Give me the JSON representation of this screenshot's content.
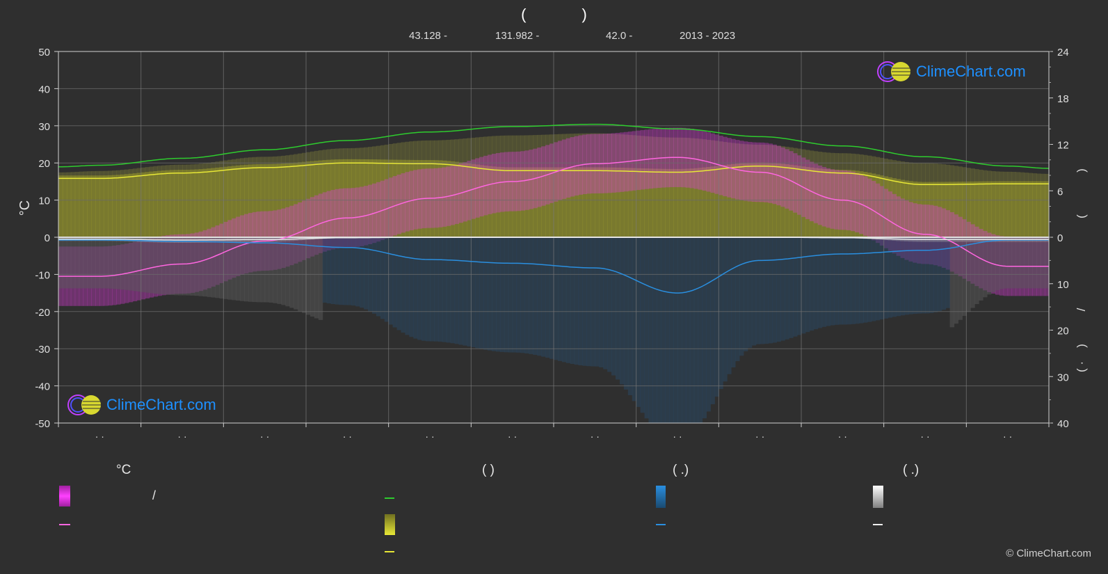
{
  "header": {
    "title_left": "(",
    "title_right": ")",
    "lat": "43.128 -",
    "lon": "131.982 -",
    "elev": "42.0 -",
    "years": "2013 - 2023"
  },
  "logo": {
    "text": "ClimeChart.com"
  },
  "copyright": "© ClimeChart.com",
  "legend": {
    "col1_head": "°C",
    "col1_slash": "/",
    "col2_head": "(          )",
    "col3_head": "(   .)",
    "col4_head": "(   .)"
  },
  "colors": {
    "background": "#2f2f2f",
    "daylight": "#2ecc2e",
    "sunshine": "#e8e836",
    "temperature": "#ff66e0",
    "temp_band": "#e13ce0",
    "precipitation": "#2a8fe0",
    "snow": "#e8e8e8"
  },
  "chart_data": {
    "type": "line",
    "months": [
      "· ·",
      "· ·",
      "· ·",
      "· ·",
      "· ·",
      "· ·",
      "· ·",
      "· ·",
      "· ·",
      "· ·",
      "· ·",
      "· ·"
    ],
    "left_axis": {
      "label": "°C",
      "ticks": [
        50,
        40,
        30,
        20,
        10,
        0,
        -10,
        -20,
        -30,
        -40,
        -50
      ],
      "range": [
        -50,
        50
      ]
    },
    "right_axis_top": {
      "ticks": [
        24,
        18,
        12,
        6,
        0
      ],
      "range": [
        0,
        24
      ]
    },
    "right_axis_bottom": {
      "ticks": [
        0,
        10,
        20,
        30,
        40
      ],
      "range": [
        0,
        40
      ]
    },
    "right_labels": [
      ")",
      "(",
      "/",
      ")",
      "( ·"
    ],
    "series": [
      {
        "key": "daylight",
        "axis": "hours",
        "x": [
          0,
          0.5,
          1.5,
          2.5,
          3.5,
          4.5,
          5.5,
          6.5,
          7.5,
          8.5,
          9.5,
          10.5,
          11.5,
          12
        ],
        "values": [
          9.1,
          9.3,
          10.2,
          11.3,
          12.5,
          13.6,
          14.3,
          14.6,
          14.0,
          13.0,
          11.8,
          10.4,
          9.2,
          8.9
        ]
      },
      {
        "key": "sunshine",
        "axis": "hours",
        "x": [
          0,
          0.5,
          1.5,
          2.5,
          3.5,
          4.5,
          5.5,
          6.5,
          7.5,
          8.5,
          9.5,
          10.5,
          11.5,
          12
        ],
        "values": [
          7.6,
          7.6,
          8.3,
          9.0,
          9.6,
          9.5,
          8.6,
          8.6,
          8.4,
          9.2,
          8.3,
          6.8,
          6.9,
          6.9
        ]
      },
      {
        "key": "temperature",
        "axis": "celsius",
        "x": [
          0,
          0.5,
          1.5,
          2.5,
          3.5,
          4.5,
          5.5,
          6.5,
          7.5,
          8.5,
          9.5,
          10.5,
          11.5,
          12
        ],
        "values": [
          -10.5,
          -10.5,
          -7.2,
          -1.0,
          5.2,
          10.5,
          15.0,
          19.8,
          21.5,
          17.5,
          10.0,
          0.8,
          -7.8,
          -7.8
        ]
      },
      {
        "key": "precipitation",
        "axis": "mm",
        "x": [
          0,
          0.5,
          1.5,
          2.5,
          3.5,
          4.5,
          5.5,
          6.5,
          7.5,
          8.5,
          9.5,
          10.5,
          11.5,
          12
        ],
        "values": [
          0.6,
          0.6,
          0.9,
          1.2,
          2.2,
          4.8,
          5.6,
          6.6,
          12.0,
          5.0,
          3.6,
          2.8,
          0.6,
          0.6
        ]
      },
      {
        "key": "snow",
        "axis": "mm",
        "x": [
          0,
          0.5,
          1.5,
          2.5,
          3.5,
          4.5,
          5.5,
          6.5,
          7.5,
          8.5,
          9.5,
          10.5,
          11.5,
          12
        ],
        "values": [
          0.4,
          0.4,
          0.6,
          0.5,
          0.1,
          0,
          0,
          0,
          0,
          0,
          0.1,
          0.5,
          0.5,
          0.5
        ]
      }
    ]
  }
}
